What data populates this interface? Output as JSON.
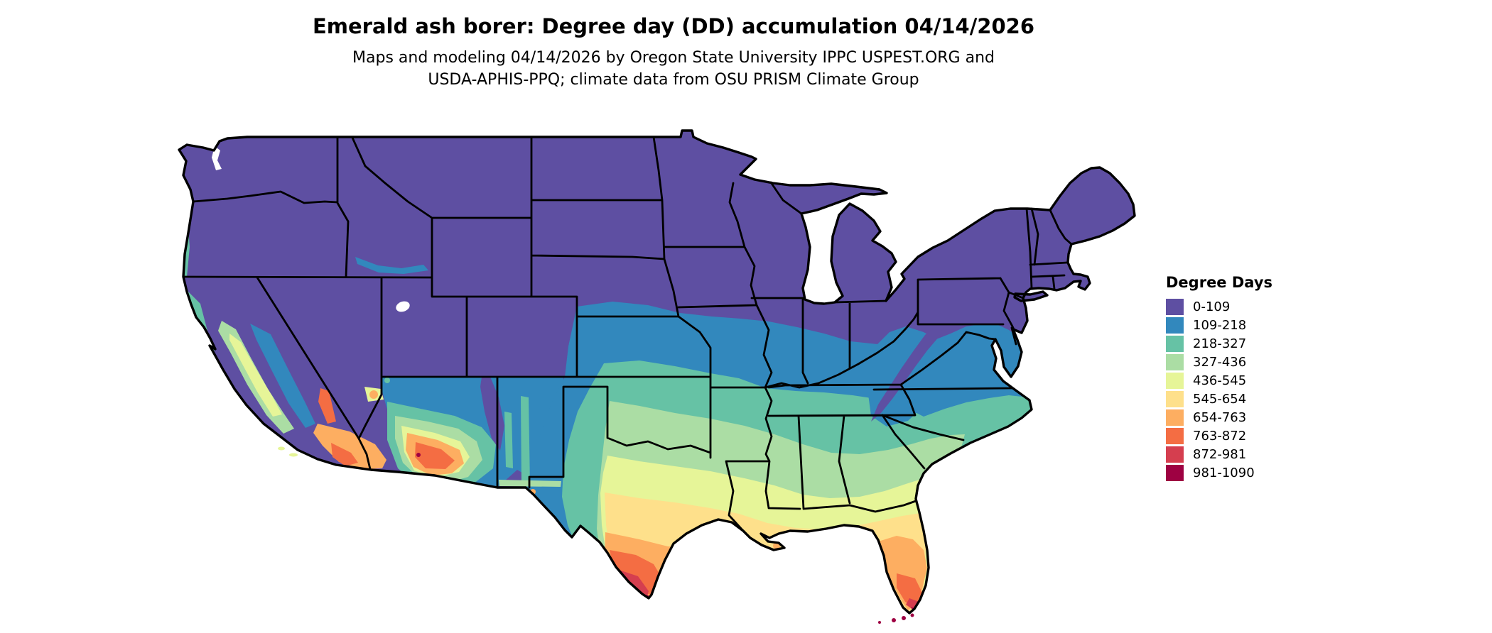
{
  "header": {
    "title": "Emerald ash borer: Degree day (DD) accumulation 04/14/2026",
    "subtitle_line1": "Maps and modeling 04/14/2026 by Oregon State University IPPC USPEST.ORG and",
    "subtitle_line2": "USDA-APHIS-PPQ; climate data from OSU PRISM Climate Group"
  },
  "legend": {
    "title": "Degree Days",
    "items": [
      {
        "label": "0-109",
        "color": "#5e4fa2"
      },
      {
        "label": "109-218",
        "color": "#3288bd"
      },
      {
        "label": "218-327",
        "color": "#66c2a5"
      },
      {
        "label": "327-436",
        "color": "#abdda4"
      },
      {
        "label": "436-545",
        "color": "#e6f598"
      },
      {
        "label": "545-654",
        "color": "#fee08b"
      },
      {
        "label": "654-763",
        "color": "#fdae61"
      },
      {
        "label": "763-872",
        "color": "#f46d43"
      },
      {
        "label": "872-981",
        "color": "#d53e4f"
      },
      {
        "label": "981-1090",
        "color": "#9e0142"
      }
    ]
  },
  "map": {
    "region": "Contiguous United States",
    "kind": "degree-day accumulation choropleth raster with state boundaries",
    "water_color": "#ffffff",
    "border_color": "#000000"
  }
}
